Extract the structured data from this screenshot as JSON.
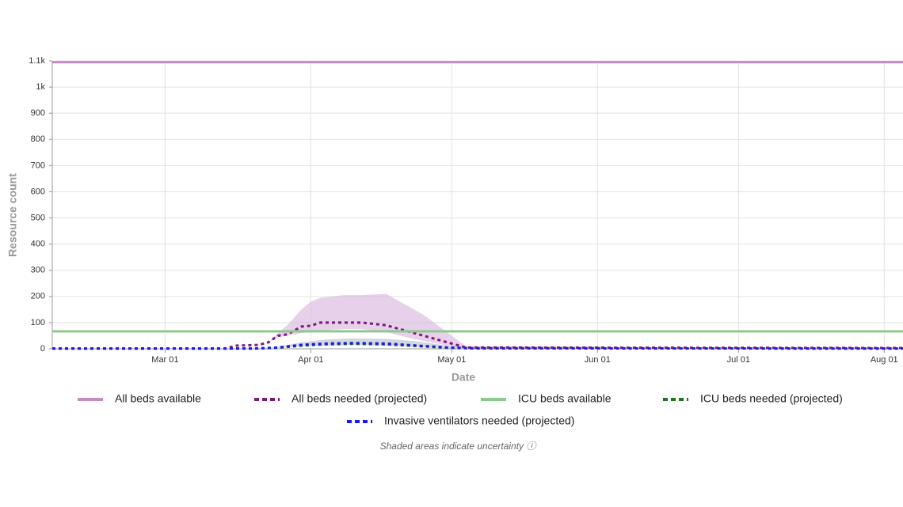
{
  "chart_data": {
    "type": "line",
    "x_label": "Date",
    "y_label": "Resource count",
    "note": "Shaded areas indicate uncertainty ⓘ",
    "xlim": [
      "02-06",
      "08-05"
    ],
    "xticks": [
      {
        "value": "03-01",
        "label": "Mar 01"
      },
      {
        "value": "04-01",
        "label": "Apr 01"
      },
      {
        "value": "05-01",
        "label": "May 01"
      },
      {
        "value": "06-01",
        "label": "Jun 01"
      },
      {
        "value": "07-01",
        "label": "Jul 01"
      },
      {
        "value": "08-01",
        "label": "Aug 01"
      }
    ],
    "ylim": [
      0,
      1100
    ],
    "yticks": [
      0,
      100,
      200,
      300,
      400,
      500,
      600,
      700,
      800,
      900,
      {
        "value": 1000,
        "label": "1k"
      },
      {
        "value": 1100,
        "label": "1.1k"
      }
    ],
    "grid": true,
    "series": [
      {
        "name": "All beds available",
        "color": "#c58bc6",
        "dashed": false,
        "x": [
          "02-06",
          "08-05"
        ],
        "values": [
          1095,
          1095
        ]
      },
      {
        "name": "All beds needed (projected)",
        "color": "#7b1a7b",
        "dashed": true,
        "band_color": "#d7b3dc",
        "x": [
          "02-06",
          "03-14",
          "03-16",
          "03-21",
          "03-23",
          "03-25",
          "03-27",
          "03-30",
          "04-01",
          "04-03",
          "04-08",
          "04-12",
          "04-17",
          "04-20",
          "04-25",
          "05-01",
          "05-04",
          "08-05"
        ],
        "values": [
          1,
          1,
          12,
          15,
          25,
          50,
          55,
          85,
          88,
          100,
          100,
          100,
          90,
          75,
          50,
          20,
          5,
          3
        ],
        "upper": [
          1,
          1,
          12,
          15,
          25,
          60,
          90,
          150,
          180,
          195,
          205,
          205,
          210,
          180,
          130,
          50,
          10,
          3
        ],
        "lower": [
          1,
          1,
          12,
          15,
          25,
          45,
          50,
          60,
          65,
          70,
          75,
          75,
          65,
          50,
          30,
          10,
          3,
          3
        ]
      },
      {
        "name": "ICU beds available",
        "color": "#8cc98c",
        "dashed": false,
        "x": [
          "02-06",
          "08-05"
        ],
        "values": [
          67,
          67
        ]
      },
      {
        "name": "ICU beds needed (projected)",
        "color": "#1a7a1a",
        "dashed": true,
        "x": [
          "02-06",
          "03-20",
          "03-25",
          "03-30",
          "04-04",
          "04-10",
          "04-17",
          "04-24",
          "04-30",
          "05-05",
          "08-05"
        ],
        "values": [
          1,
          1,
          4,
          12,
          17,
          19,
          17,
          10,
          4,
          2,
          1
        ]
      },
      {
        "name": "Invasive ventilators needed (projected)",
        "color": "#1a1aee",
        "dashed": true,
        "band_color": "#b9bcc8",
        "x": [
          "02-06",
          "03-20",
          "03-25",
          "03-30",
          "04-04",
          "04-10",
          "04-17",
          "04-24",
          "04-30",
          "05-05",
          "08-05"
        ],
        "values": [
          1,
          1,
          5,
          15,
          20,
          22,
          20,
          12,
          5,
          2,
          1
        ],
        "upper": [
          1,
          1,
          8,
          25,
          35,
          40,
          38,
          28,
          12,
          4,
          1
        ],
        "lower": [
          1,
          1,
          3,
          10,
          12,
          14,
          12,
          7,
          2,
          1,
          1
        ]
      }
    ]
  }
}
